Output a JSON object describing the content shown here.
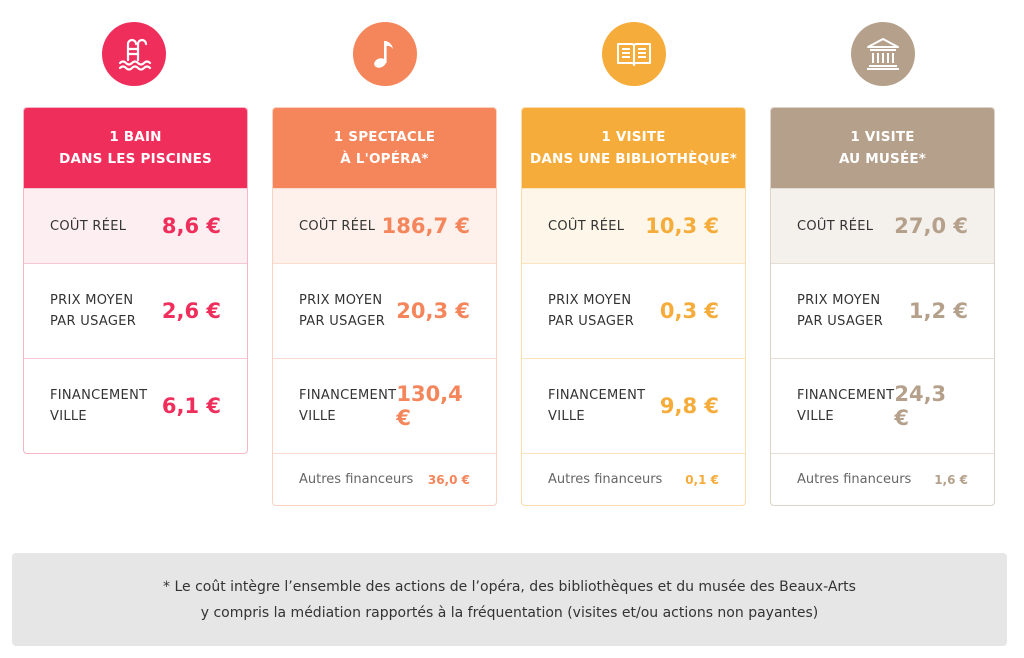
{
  "colors": {
    "pink": "#f02e5c",
    "orange": "#f5855b",
    "yellow": "#f6ac3a",
    "taupe": "#b5a18b"
  },
  "cards": [
    {
      "icon": "pool-ladder-icon",
      "title_line1": "1 BAIN",
      "title_line2": "DANS LES PISCINES",
      "cout_label": "COÛT RÉEL",
      "cout_value": "8,6 €",
      "prix_label1": "PRIX MOYEN",
      "prix_label2": "PAR USAGER",
      "prix_value": "2,6 €",
      "fin_label1": "FINANCEMENT",
      "fin_label2": "VILLE",
      "fin_value": "6,1 €"
    },
    {
      "icon": "music-note-icon",
      "title_line1": "1 SPECTACLE",
      "title_line2": "À L'OPÉRA*",
      "cout_label": "COÛT RÉEL",
      "cout_value": "186,7 €",
      "prix_label1": "PRIX MOYEN",
      "prix_label2": "PAR USAGER",
      "prix_value": "20,3 €",
      "fin_label1": "FINANCEMENT",
      "fin_label2": "VILLE",
      "fin_value": "130,4 €",
      "autres_label": "Autres financeurs",
      "autres_value": "36,0 €"
    },
    {
      "icon": "open-book-icon",
      "title_line1": "1 VISITE",
      "title_line2": "DANS UNE BIBLIOTHÈQUE*",
      "cout_label": "COÛT RÉEL",
      "cout_value": "10,3 €",
      "prix_label1": "PRIX MOYEN",
      "prix_label2": "PAR USAGER",
      "prix_value": "0,3 €",
      "fin_label1": "FINANCEMENT",
      "fin_label2": "VILLE",
      "fin_value": "9,8 €",
      "autres_label": "Autres financeurs",
      "autres_value": "0,1 €"
    },
    {
      "icon": "museum-icon",
      "title_line1": "1 VISITE",
      "title_line2": "AU MUSÉE*",
      "cout_label": "COÛT RÉEL",
      "cout_value": "27,0 €",
      "prix_label1": "PRIX MOYEN",
      "prix_label2": "PAR USAGER",
      "prix_value": "1,2 €",
      "fin_label1": "FINANCEMENT",
      "fin_label2": "VILLE",
      "fin_value": "24,3 €",
      "autres_label": "Autres financeurs",
      "autres_value": "1,6 €"
    }
  ],
  "footnote": {
    "line1": "* Le coût intègre l’ensemble des actions de l’opéra, des bibliothèques et du musée des Beaux-Arts",
    "line2": "y compris la médiation rapportés à la fréquentation (visites et/ou actions non payantes)"
  }
}
